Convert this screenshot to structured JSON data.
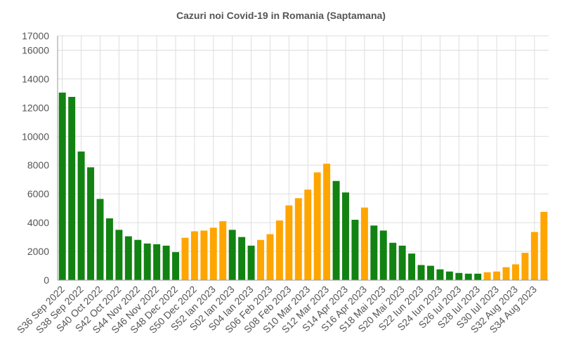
{
  "chart_data": {
    "type": "bar",
    "title": "Cazuri noi Covid-19 in Romania (Saptamana)",
    "xlabel": "",
    "ylabel": "",
    "ylim": [
      0,
      17000
    ],
    "y_ticks": [
      0,
      2000,
      4000,
      6000,
      8000,
      10000,
      12000,
      14000,
      16000,
      17000
    ],
    "grid": true,
    "legend": "none",
    "colors": {
      "green": "#128212",
      "orange": "#FFA500"
    },
    "x_tick_labels": [
      "S36 Sep 2022",
      "S38 Sep 2022",
      "S40 Oct 2022",
      "S42 Oct 2022",
      "S44 Nov 2022",
      "S46 Nov 2022",
      "S48 Dec 2022",
      "S50 Dec 2022",
      "S52 Ian 2023",
      "S02 Ian 2023",
      "S04 Ian 2023",
      "S06 Feb 2023",
      "S08 Feb 2023",
      "S10 Mar 2023",
      "S12 Mar 2023",
      "S14 Apr 2023",
      "S16 Apr 2023",
      "S18 Mai 2023",
      "S20 Mai 2023",
      "S22 Iun 2023",
      "S24 Iun 2023",
      "S26 Iul 2023",
      "S28 Iul 2023",
      "S30 Iul 2023",
      "S32 Aug 2023",
      "S34 Aug 2023"
    ],
    "values": [
      13050,
      12750,
      8950,
      7850,
      5650,
      4300,
      3500,
      3050,
      2800,
      2550,
      2500,
      2400,
      1950,
      2950,
      3400,
      3450,
      3650,
      4100,
      3500,
      3000,
      2400,
      2800,
      3200,
      4150,
      5200,
      5700,
      6300,
      7500,
      8100,
      6900,
      6100,
      4200,
      5050,
      3800,
      3450,
      2600,
      2400,
      1850,
      1050,
      1000,
      750,
      600,
      500,
      450,
      450,
      550,
      600,
      900,
      1100,
      1900,
      3350,
      4750
    ],
    "bar_colors": [
      "green",
      "green",
      "green",
      "green",
      "green",
      "green",
      "green",
      "green",
      "green",
      "green",
      "green",
      "green",
      "green",
      "orange",
      "orange",
      "orange",
      "orange",
      "orange",
      "green",
      "green",
      "green",
      "orange",
      "orange",
      "orange",
      "orange",
      "orange",
      "orange",
      "orange",
      "orange",
      "green",
      "green",
      "green",
      "orange",
      "green",
      "green",
      "green",
      "green",
      "green",
      "green",
      "green",
      "green",
      "green",
      "green",
      "green",
      "green",
      "orange",
      "orange",
      "orange",
      "orange",
      "orange",
      "orange",
      "orange"
    ]
  }
}
